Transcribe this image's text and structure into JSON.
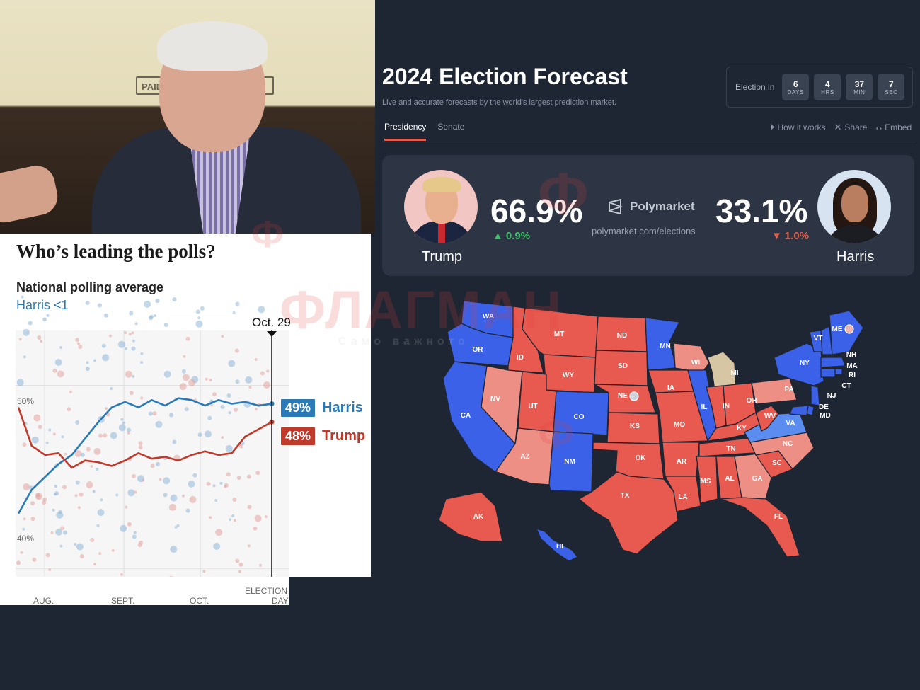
{
  "photo": {
    "sign_text": "PAID F"
  },
  "polls": {
    "headline": "Who’s leading the polls?",
    "subtitle": "National polling average",
    "lead_note": "Harris <1",
    "date_marker": "Oct. 29",
    "y_ticks": [
      "50%",
      "40%"
    ],
    "x_ticks": [
      "AUG.",
      "SEPT.",
      "OCT.",
      "ELECTION",
      "DAY"
    ],
    "harris": {
      "pct": "49%",
      "name": "Harris",
      "color": "#2a7ab8"
    },
    "trump": {
      "pct": "48%",
      "name": "Trump",
      "color": "#c0392b"
    }
  },
  "chart_data": {
    "type": "line",
    "title": "National polling average",
    "subtitle": "Harris <1",
    "ylim": [
      38,
      53
    ],
    "series": [
      {
        "name": "Harris",
        "color": "#2a7ab8",
        "values": [
          43,
          44.3,
          45,
          45.7,
          46.2,
          47.1,
          48,
          48.8,
          49.1,
          48.8,
          49.2,
          48.9,
          49.3,
          49.2,
          48.9,
          49.2,
          49,
          49.1,
          48.9,
          49
        ]
      },
      {
        "name": "Trump",
        "color": "#c0392b",
        "values": [
          48.8,
          46.7,
          46.2,
          46.3,
          45.5,
          45.9,
          45.8,
          45.6,
          45.9,
          46.3,
          46,
          46.1,
          45.9,
          46.2,
          46.4,
          46.2,
          46.3,
          47.2,
          47.6,
          48
        ]
      }
    ]
  },
  "forecast": {
    "title": "2024 Election Forecast",
    "subtitle": "Live and accurate forecasts by the world's largest prediction market.",
    "countdown": {
      "label": "Election in",
      "units": [
        {
          "n": "6",
          "u": "DAYS"
        },
        {
          "n": "4",
          "u": "HRS"
        },
        {
          "n": "37",
          "u": "MIN"
        },
        {
          "n": "7",
          "u": "SEC"
        }
      ]
    },
    "tabs": [
      "Presidency",
      "Senate"
    ],
    "actions": [
      "How it works",
      "Share",
      "Embed"
    ],
    "trump": {
      "name": "Trump",
      "pct": "66.9%",
      "change": "0.9%"
    },
    "harris": {
      "name": "Harris",
      "pct": "33.1%",
      "change": "1.0%"
    },
    "brand": "Polymarket",
    "brand_url": "polymarket.com/elections",
    "colors": {
      "red": "#e85a4f",
      "light_red": "#ee8f86",
      "blue": "#3a61e8",
      "light_blue": "#5b8df0",
      "undecided": "#d6c6a4"
    }
  },
  "map": {
    "states": [
      "WA",
      "OR",
      "CA",
      "ID",
      "NV",
      "MT",
      "WY",
      "UT",
      "AZ",
      "CO",
      "NM",
      "ND",
      "SD",
      "NE",
      "KS",
      "OK",
      "TX",
      "MN",
      "IA",
      "MO",
      "AR",
      "LA",
      "WI",
      "IL",
      "MI",
      "IN",
      "OH",
      "KY",
      "TN",
      "MS",
      "AL",
      "GA",
      "FL",
      "SC",
      "NC",
      "VA",
      "WV",
      "PA",
      "NY",
      "VT",
      "ME",
      "NH",
      "MA",
      "RI",
      "CT",
      "NJ",
      "DE",
      "MD",
      "AK",
      "HI"
    ]
  },
  "watermark": {
    "text": "ФЛАГМАН",
    "tagline": "Само важното",
    "logo": "Ф"
  }
}
